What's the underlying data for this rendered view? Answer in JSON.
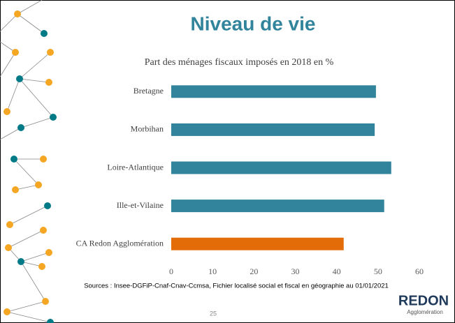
{
  "slide": {
    "title": "Niveau de vie",
    "source": "Sources : Insee-DGFiP-Cnaf-Cnav-Ccmsa, Fichier localisé social et fiscal en géographie au 01/01/2021",
    "page_number": "25",
    "logo": "REDON",
    "logo_subtitle": "Agglomération"
  },
  "chart_data": {
    "type": "bar",
    "orientation": "horizontal",
    "title": "Part des ménages fiscaux imposés en 2018 en %",
    "categories": [
      "Bretagne",
      "Morbihan",
      "Loire-Atlantique",
      "Ille-et-Vilaine",
      "CA Redon Agglomération"
    ],
    "values": [
      49.5,
      49.2,
      53.2,
      51.5,
      41.7
    ],
    "colors": [
      "#31849b",
      "#31849b",
      "#31849b",
      "#31849b",
      "#e36c09"
    ],
    "xlim": [
      0,
      60
    ],
    "xticks": [
      0,
      10,
      20,
      30,
      40,
      50,
      60
    ],
    "grid": false
  }
}
